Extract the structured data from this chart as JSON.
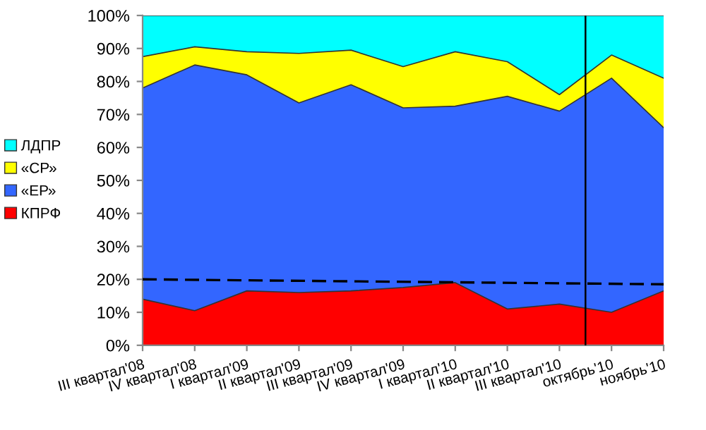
{
  "chart_data": {
    "type": "area",
    "stacked": true,
    "categories": [
      "III квартал'08",
      "IV квартал'08",
      "I квартал'09",
      "II квартал'09",
      "III квартал'09",
      "IV квартал'09",
      "I квартал'10",
      "II квартал'10",
      "III квартал'10",
      "октябрь'10",
      "ноябрь'10"
    ],
    "series": [
      {
        "name": "КПРФ",
        "color": "#ff0000",
        "values": [
          14,
          10.5,
          16.5,
          16,
          16.5,
          17.5,
          19,
          11,
          12.5,
          10,
          16.5
        ]
      },
      {
        "name": "«ЕР»",
        "color": "#3366ff",
        "values": [
          64,
          74.5,
          65.5,
          57.5,
          62.5,
          54.5,
          53.5,
          64.5,
          58.5,
          71,
          49.5
        ]
      },
      {
        "name": "«СР»",
        "color": "#ffff00",
        "values": [
          9.5,
          5.5,
          7,
          15,
          10.5,
          12.5,
          16.5,
          10.5,
          5,
          7,
          15
        ]
      },
      {
        "name": "ЛДПР",
        "color": "#00ffff",
        "values": [
          12.5,
          9.5,
          11,
          11.5,
          10.5,
          15.5,
          11,
          14,
          24,
          12,
          19
        ]
      },
      {
        "type": "line",
        "color": "#000000",
        "line_style": "dashed",
        "values": [
          20,
          null,
          null,
          null,
          null,
          null,
          null,
          null,
          null,
          null,
          18.5
        ]
      }
    ],
    "ylim": [
      0,
      100
    ],
    "yticks": [
      {
        "value": 0,
        "label": "0%"
      },
      {
        "value": 10,
        "label": "10%"
      },
      {
        "value": 20,
        "label": "20%"
      },
      {
        "value": 30,
        "label": "30%"
      },
      {
        "value": 40,
        "label": "40%"
      },
      {
        "value": 50,
        "label": "50%"
      },
      {
        "value": 60,
        "label": "60%"
      },
      {
        "value": 70,
        "label": "70%"
      },
      {
        "value": 80,
        "label": "80%"
      },
      {
        "value": 90,
        "label": "90%"
      },
      {
        "value": 100,
        "label": "100%"
      }
    ],
    "legend": "left",
    "grid": false
  }
}
